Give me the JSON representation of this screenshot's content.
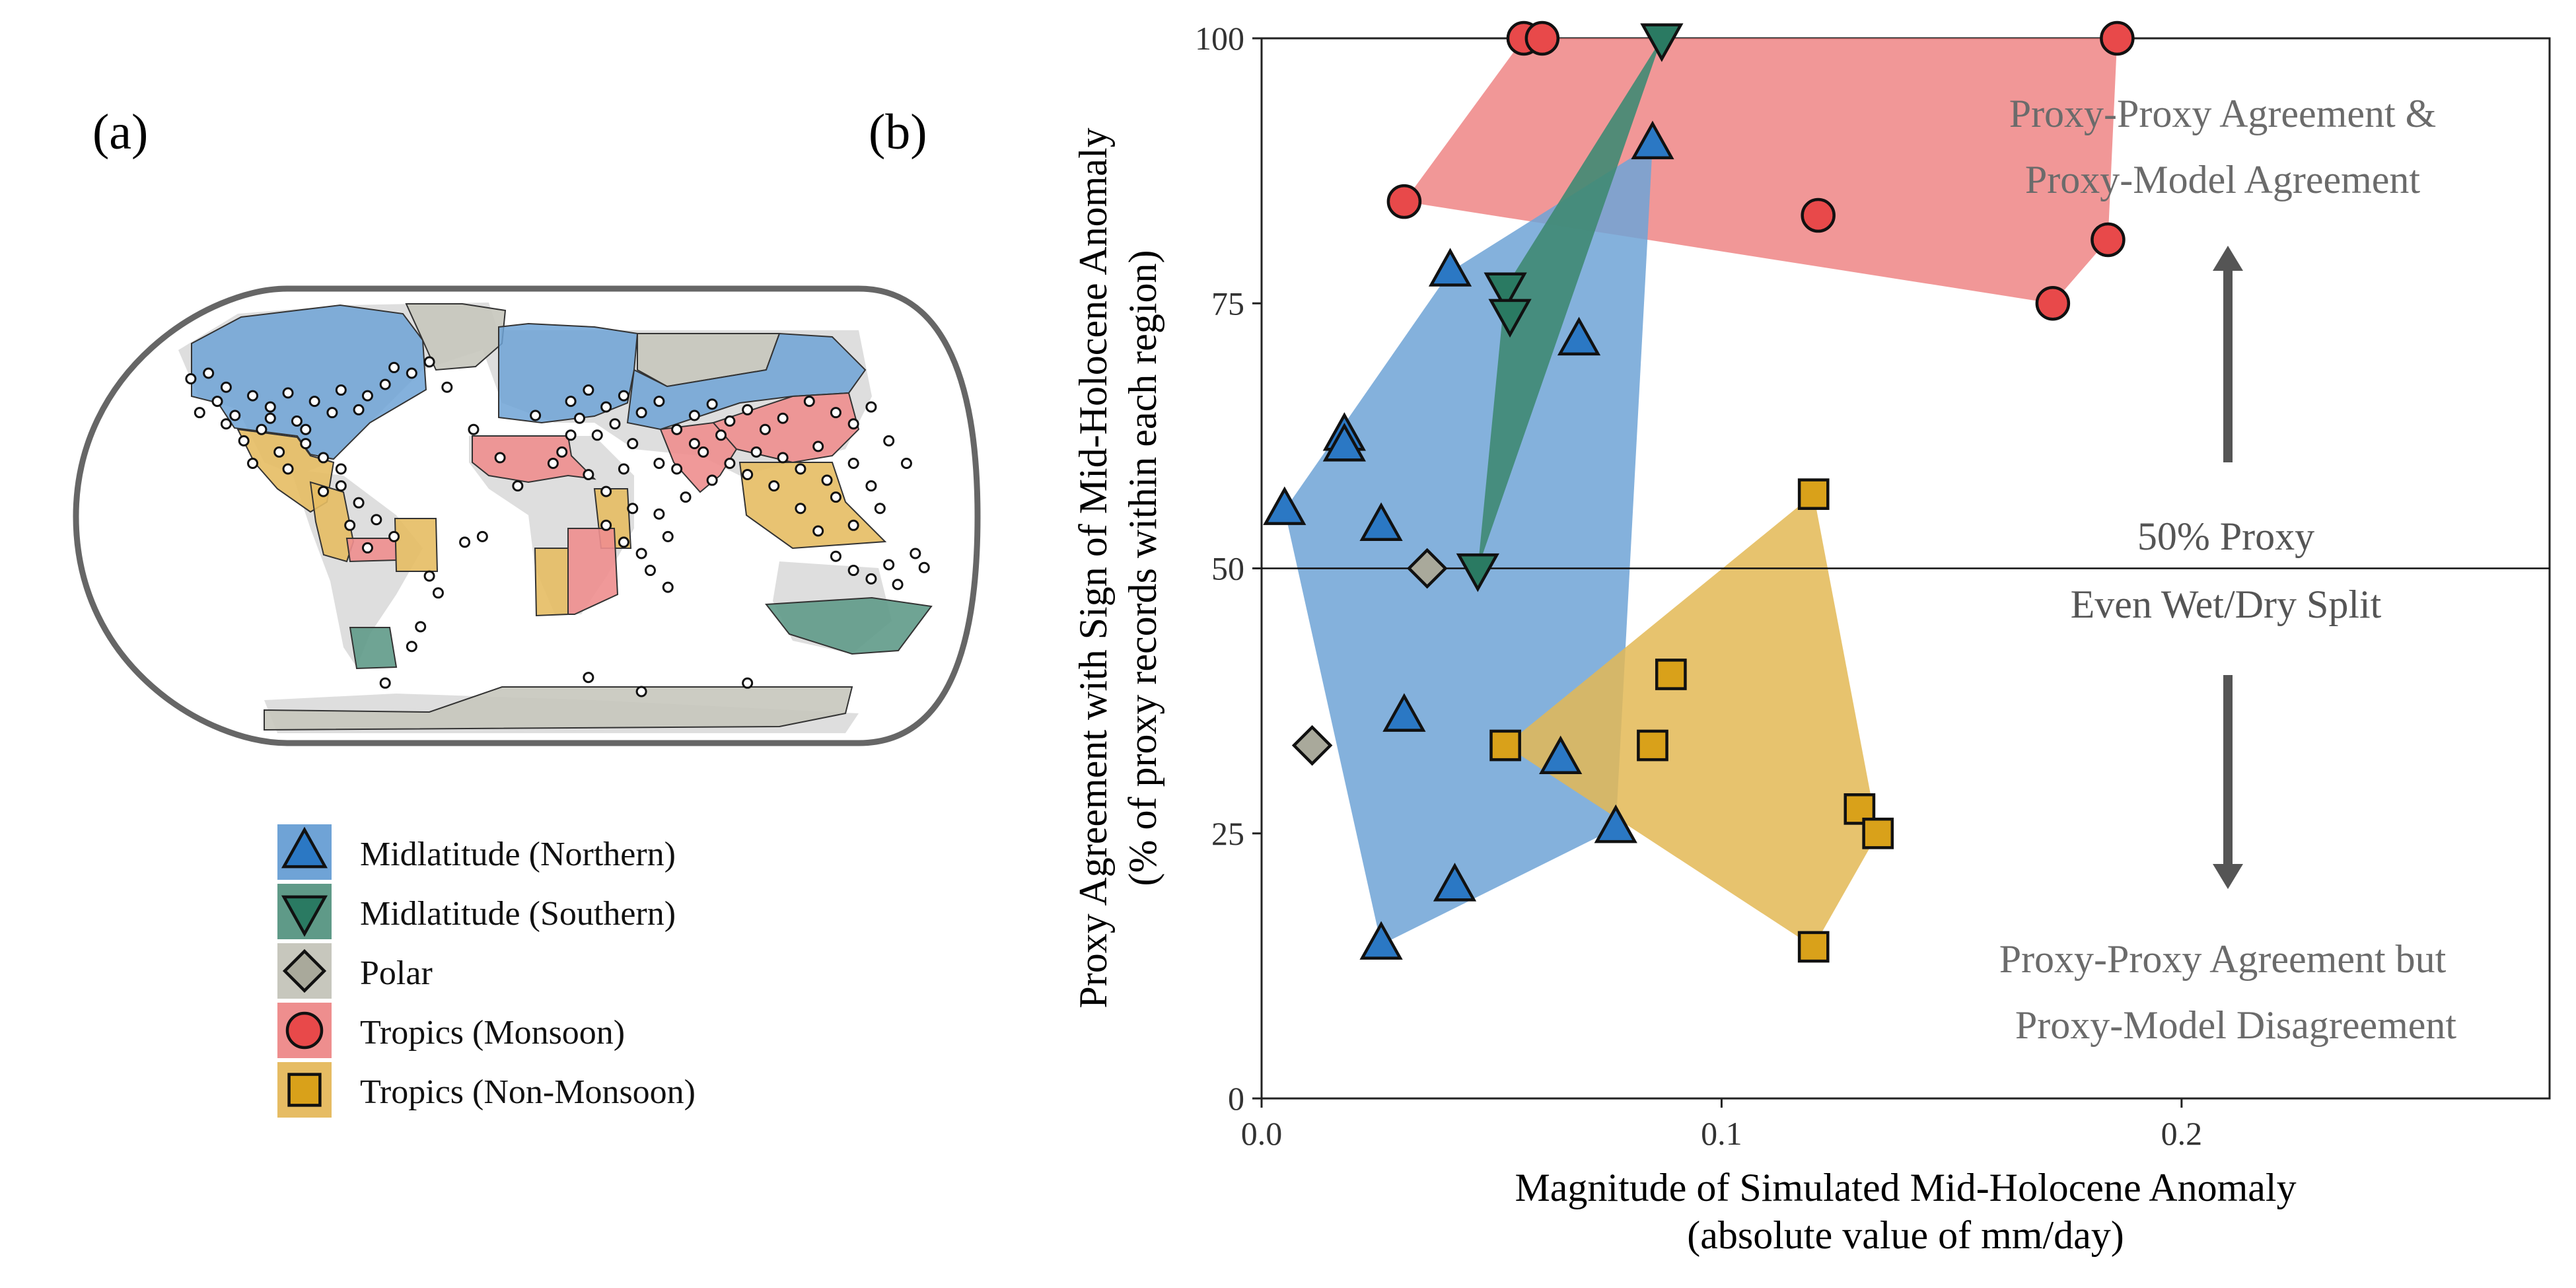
{
  "panel_labels": {
    "a": "(a)",
    "b": "(b)"
  },
  "legend": {
    "items": [
      {
        "label": "Midlatitude (Northern)",
        "marker": "triangle-up",
        "fill": "#2b78c4",
        "patch": "#6fa3d6"
      },
      {
        "label": "Midlatitude (Southern)",
        "marker": "triangle-down",
        "fill": "#2a7a62",
        "patch": "#5f9a88"
      },
      {
        "label": "Polar",
        "marker": "diamond",
        "fill": "#a9a99b",
        "patch": "#c7c7bd"
      },
      {
        "label": "Tropics (Monsoon)",
        "marker": "circle",
        "fill": "#e8494a",
        "patch": "#ee8e8e"
      },
      {
        "label": "Tropics (Non-Monsoon)",
        "marker": "square",
        "fill": "#d9a11a",
        "patch": "#e6bc63"
      }
    ]
  },
  "annotations": {
    "top_line1": "Proxy-Proxy Agreement &",
    "top_line2": "Proxy-Model Agreement",
    "mid_line1": "50% Proxy",
    "mid_line2": "Even Wet/Dry Split",
    "bottom_line1": "Proxy-Proxy Agreement but",
    "bottom_line2": "Proxy-Model Disagreement"
  },
  "colors": {
    "monsoon": "#e8494a",
    "monsoon_hull": "#ee8585",
    "north": "#2b78c4",
    "north_hull": "#6fa3d6",
    "south": "#2a7a62",
    "south_hull": "#3f8a73",
    "polar": "#a9a99b",
    "nonmonsoon": "#d9a11a",
    "nonmonsoon_hull": "#e3b855",
    "annotation": "#6b6b6b",
    "arrow": "#555555"
  },
  "chart_data": {
    "type": "scatter",
    "xlabel": "Magnitude of Simulated Mid-Holocene Anomaly",
    "xlabel2": "(absolute value of mm/day)",
    "ylabel": "Proxy Agreement with Sign of Mid-Holocene Anomaly",
    "ylabel2": "(% of proxy records within each region)",
    "xlim": [
      0,
      0.28
    ],
    "ylim": [
      0,
      100
    ],
    "xticks": [
      0.0,
      0.1,
      0.2
    ],
    "xtick_labels": [
      "0.0",
      "0.1",
      "0.2"
    ],
    "yticks": [
      0,
      25,
      50,
      75,
      100
    ],
    "ytick_labels": [
      "0",
      "25",
      "50",
      "75",
      "100"
    ],
    "hline": 50,
    "grid": false,
    "series": [
      {
        "name": "Tropics (Monsoon)",
        "key": "monsoon",
        "marker": "circle",
        "points": [
          [
            0.031,
            84.6
          ],
          [
            0.057,
            100
          ],
          [
            0.061,
            100
          ],
          [
            0.121,
            83.3
          ],
          [
            0.172,
            75
          ],
          [
            0.184,
            81
          ],
          [
            0.186,
            100
          ]
        ]
      },
      {
        "name": "Midlatitude (Northern)",
        "key": "north",
        "marker": "triangle-up",
        "points": [
          [
            0.005,
            55.5
          ],
          [
            0.018,
            62.5
          ],
          [
            0.018,
            61.5
          ],
          [
            0.026,
            54
          ],
          [
            0.031,
            36
          ],
          [
            0.041,
            78
          ],
          [
            0.042,
            20
          ],
          [
            0.026,
            14.5
          ],
          [
            0.065,
            32
          ],
          [
            0.069,
            71.5
          ],
          [
            0.077,
            25.5
          ],
          [
            0.085,
            90
          ]
        ]
      },
      {
        "name": "Midlatitude (Southern)",
        "key": "south",
        "marker": "triangle-down",
        "points": [
          [
            0.047,
            50
          ],
          [
            0.053,
            76.5
          ],
          [
            0.054,
            74
          ],
          [
            0.087,
            100
          ]
        ]
      },
      {
        "name": "Polar",
        "key": "polar",
        "marker": "diamond",
        "points": [
          [
            0.011,
            33.3
          ],
          [
            0.036,
            50
          ]
        ]
      },
      {
        "name": "Tropics (Non-Monsoon)",
        "key": "nonmonsoon",
        "marker": "square",
        "points": [
          [
            0.053,
            33.3
          ],
          [
            0.085,
            33.3
          ],
          [
            0.089,
            40
          ],
          [
            0.12,
            57
          ],
          [
            0.12,
            14.3
          ],
          [
            0.13,
            27.3
          ],
          [
            0.134,
            25
          ]
        ]
      }
    ]
  },
  "map": {
    "proxy_sites": [
      [
        0.13,
        0.32
      ],
      [
        0.15,
        0.3
      ],
      [
        0.17,
        0.35
      ],
      [
        0.16,
        0.4
      ],
      [
        0.18,
        0.45
      ],
      [
        0.2,
        0.38
      ],
      [
        0.22,
        0.42
      ],
      [
        0.24,
        0.37
      ],
      [
        0.21,
        0.5
      ],
      [
        0.25,
        0.47
      ],
      [
        0.27,
        0.4
      ],
      [
        0.29,
        0.44
      ],
      [
        0.3,
        0.36
      ],
      [
        0.32,
        0.43
      ],
      [
        0.26,
        0.55
      ],
      [
        0.23,
        0.58
      ],
      [
        0.28,
        0.6
      ],
      [
        0.19,
        0.54
      ],
      [
        0.17,
        0.48
      ],
      [
        0.14,
        0.44
      ],
      [
        0.33,
        0.38
      ],
      [
        0.35,
        0.34
      ],
      [
        0.38,
        0.3
      ],
      [
        0.4,
        0.26
      ],
      [
        0.36,
        0.28
      ],
      [
        0.42,
        0.35
      ],
      [
        0.3,
        0.7
      ],
      [
        0.32,
        0.76
      ],
      [
        0.31,
        0.84
      ],
      [
        0.34,
        0.82
      ],
      [
        0.36,
        0.88
      ],
      [
        0.33,
        0.92
      ],
      [
        0.3,
        0.64
      ],
      [
        0.28,
        0.72
      ],
      [
        0.44,
        0.9
      ],
      [
        0.46,
        0.88
      ],
      [
        0.4,
        1.02
      ],
      [
        0.41,
        1.08
      ],
      [
        0.39,
        1.2
      ],
      [
        0.38,
        1.27
      ],
      [
        0.56,
        0.4
      ],
      [
        0.58,
        0.36
      ],
      [
        0.6,
        0.42
      ],
      [
        0.62,
        0.38
      ],
      [
        0.57,
        0.46
      ],
      [
        0.61,
        0.48
      ],
      [
        0.64,
        0.44
      ],
      [
        0.66,
        0.4
      ],
      [
        0.59,
        0.52
      ],
      [
        0.63,
        0.55
      ],
      [
        0.68,
        0.5
      ],
      [
        0.7,
        0.45
      ],
      [
        0.72,
        0.41
      ],
      [
        0.74,
        0.47
      ],
      [
        0.76,
        0.43
      ],
      [
        0.78,
        0.5
      ],
      [
        0.8,
        0.46
      ],
      [
        0.83,
        0.4
      ],
      [
        0.86,
        0.44
      ],
      [
        0.88,
        0.48
      ],
      [
        0.9,
        0.42
      ],
      [
        0.84,
        0.56
      ],
      [
        0.8,
        0.6
      ],
      [
        0.77,
        0.58
      ],
      [
        0.74,
        0.62
      ],
      [
        0.71,
        0.58
      ],
      [
        0.66,
        0.62
      ],
      [
        0.62,
        0.64
      ],
      [
        0.58,
        0.66
      ],
      [
        0.55,
        0.58
      ],
      [
        0.6,
        0.72
      ],
      [
        0.63,
        0.78
      ],
      [
        0.66,
        0.8
      ],
      [
        0.69,
        0.74
      ],
      [
        0.67,
        0.88
      ],
      [
        0.64,
        0.94
      ],
      [
        0.62,
        0.9
      ],
      [
        0.6,
        0.84
      ],
      [
        0.65,
        1.0
      ],
      [
        0.67,
        1.06
      ],
      [
        0.76,
        0.66
      ],
      [
        0.79,
        0.7
      ],
      [
        0.82,
        0.64
      ],
      [
        0.85,
        0.68
      ],
      [
        0.88,
        0.62
      ],
      [
        0.86,
        0.74
      ],
      [
        0.82,
        0.78
      ],
      [
        0.84,
        0.86
      ],
      [
        0.88,
        0.84
      ],
      [
        0.9,
        0.7
      ],
      [
        0.92,
        0.54
      ],
      [
        0.94,
        0.62
      ],
      [
        0.91,
        0.78
      ],
      [
        0.86,
        0.95
      ],
      [
        0.88,
        1.0
      ],
      [
        0.9,
        1.03
      ],
      [
        0.92,
        0.98
      ],
      [
        0.95,
        0.94
      ],
      [
        0.93,
        1.05
      ],
      [
        0.96,
        0.99
      ],
      [
        0.7,
        0.55
      ],
      [
        0.73,
        0.52
      ],
      [
        0.56,
        0.52
      ],
      [
        0.52,
        0.45
      ],
      [
        0.54,
        0.62
      ],
      [
        0.5,
        0.7
      ],
      [
        0.48,
        0.6
      ],
      [
        0.45,
        0.5
      ],
      [
        0.68,
        0.64
      ],
      [
        0.72,
        0.68
      ],
      [
        0.35,
        1.4
      ],
      [
        0.58,
        1.38
      ],
      [
        0.64,
        1.43
      ],
      [
        0.76,
        1.4
      ],
      [
        0.2,
        0.62
      ],
      [
        0.24,
        0.64
      ],
      [
        0.26,
        0.5
      ],
      [
        0.22,
        0.46
      ]
    ]
  }
}
